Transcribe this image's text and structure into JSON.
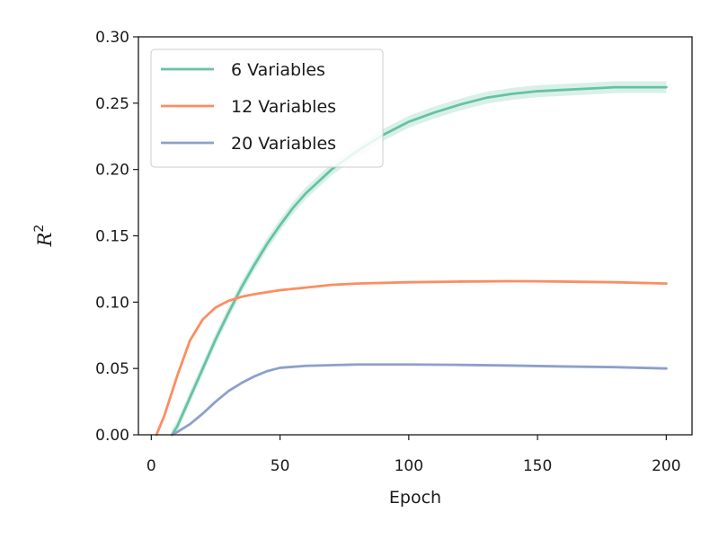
{
  "chart_data": {
    "type": "line",
    "title": "",
    "xlabel": "Epoch",
    "ylabel": "R",
    "ylabel_superscript": "2",
    "xlim": [
      -5,
      210
    ],
    "ylim": [
      0,
      0.3
    ],
    "xticks": [
      0,
      50,
      100,
      150,
      200
    ],
    "xtick_labels": [
      "0",
      "50",
      "100",
      "150",
      "200"
    ],
    "yticks": [
      0.0,
      0.05,
      0.1,
      0.15,
      0.2,
      0.25,
      0.3
    ],
    "ytick_labels": [
      "0.00",
      "0.05",
      "0.10",
      "0.15",
      "0.20",
      "0.25",
      "0.30"
    ],
    "grid": false,
    "legend_position": "top-left",
    "series": [
      {
        "name": "6 Variables",
        "color": "#66c2a5",
        "band": true,
        "x": [
          8,
          10,
          15,
          20,
          25,
          30,
          35,
          40,
          45,
          50,
          55,
          60,
          70,
          80,
          90,
          100,
          110,
          120,
          130,
          140,
          150,
          160,
          170,
          180,
          190,
          200
        ],
        "values": [
          0.0,
          0.006,
          0.028,
          0.05,
          0.072,
          0.092,
          0.111,
          0.128,
          0.144,
          0.158,
          0.171,
          0.182,
          0.2,
          0.214,
          0.226,
          0.236,
          0.243,
          0.249,
          0.254,
          0.257,
          0.259,
          0.26,
          0.261,
          0.262,
          0.262,
          0.262
        ]
      },
      {
        "name": "12 Variables",
        "color": "#fc8d62",
        "band": false,
        "x": [
          2,
          5,
          10,
          15,
          20,
          25,
          30,
          35,
          40,
          50,
          60,
          70,
          80,
          100,
          120,
          140,
          150,
          160,
          180,
          200
        ],
        "values": [
          0.0,
          0.014,
          0.044,
          0.071,
          0.087,
          0.096,
          0.101,
          0.104,
          0.106,
          0.109,
          0.111,
          0.113,
          0.114,
          0.115,
          0.1155,
          0.1158,
          0.1157,
          0.1155,
          0.115,
          0.114
        ]
      },
      {
        "name": "20 Variables",
        "color": "#8da0cb",
        "band": false,
        "x": [
          8,
          10,
          15,
          20,
          25,
          30,
          35,
          40,
          45,
          50,
          60,
          70,
          80,
          90,
          100,
          120,
          140,
          160,
          180,
          200
        ],
        "values": [
          0.0,
          0.002,
          0.008,
          0.016,
          0.025,
          0.033,
          0.039,
          0.044,
          0.048,
          0.0505,
          0.052,
          0.0525,
          0.053,
          0.053,
          0.053,
          0.0527,
          0.0522,
          0.0515,
          0.051,
          0.05
        ]
      }
    ]
  }
}
